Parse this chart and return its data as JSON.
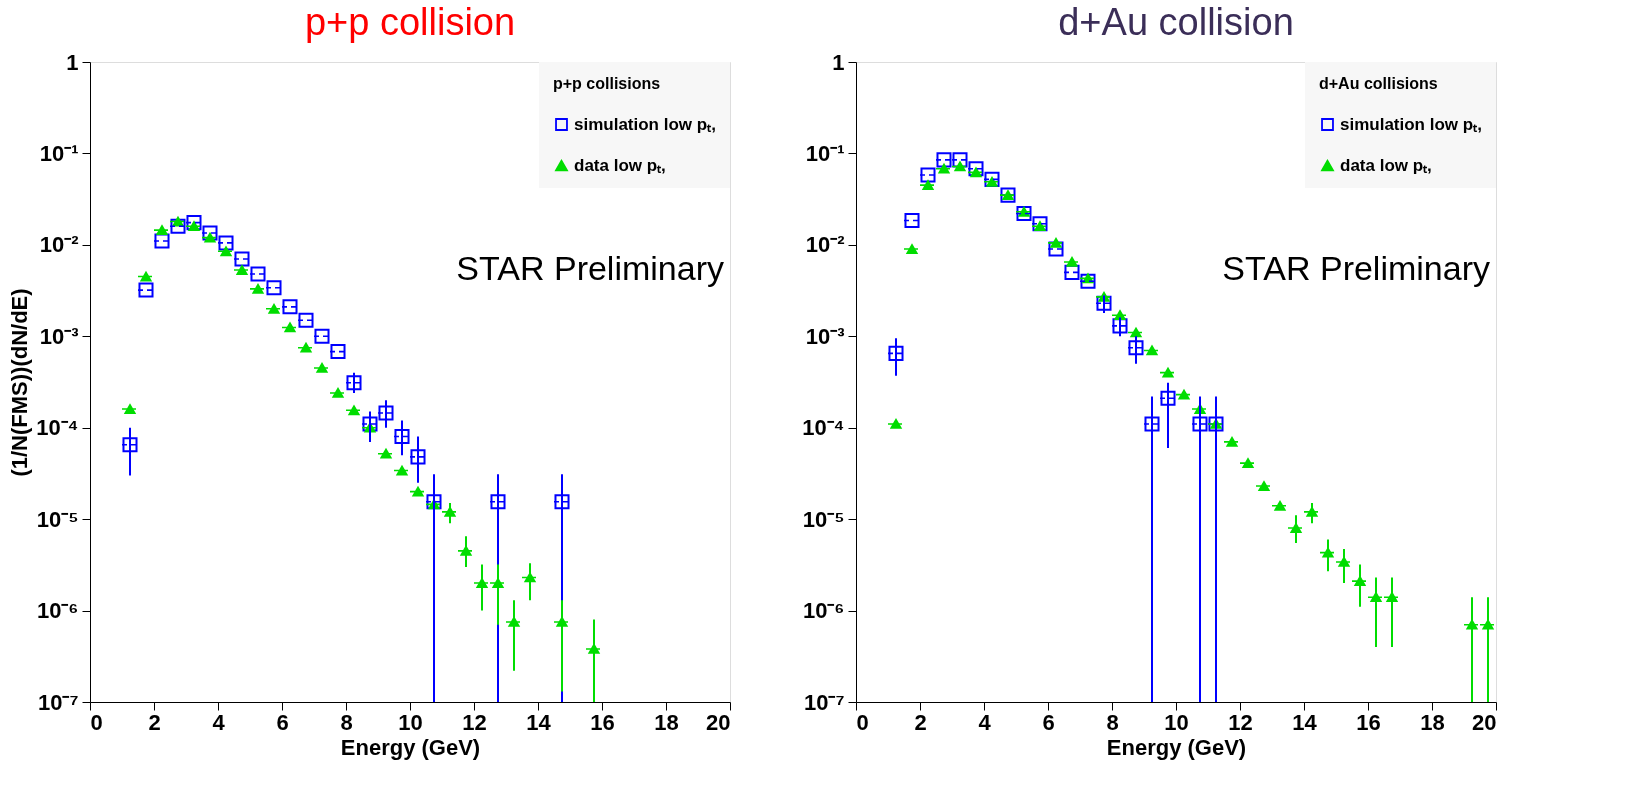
{
  "chart_data": [
    {
      "type": "scatter",
      "title": "p+p collision",
      "xlabel": "Energy (GeV)",
      "ylabel": "(1/N(FMS))(dN/dE)",
      "legend_title": "p+p collisions",
      "legend": "top right",
      "log": "y",
      "xlim": [
        0,
        20
      ],
      "xticks": [
        0,
        2,
        4,
        6,
        8,
        10,
        12,
        14,
        16,
        18,
        20
      ],
      "ylim": [
        1e-07,
        1
      ],
      "yticks": [
        {
          "value": 1e-07,
          "label": "10⁻⁷"
        },
        {
          "value": 1e-06,
          "label": "10⁻⁶"
        },
        {
          "value": 1e-05,
          "label": "10⁻⁵"
        },
        {
          "value": 0.0001,
          "label": "10⁻⁴"
        },
        {
          "value": 0.001,
          "label": "10⁻³"
        },
        {
          "value": 0.01,
          "label": "10⁻²"
        },
        {
          "value": 0.1,
          "label": "10⁻¹"
        },
        1
      ],
      "annotations": [
        "STAR Preliminary"
      ],
      "series": [
        {
          "name": "simulation low pₜ,",
          "color": "#0000ff",
          "marker": "square",
          "x": [
            1.25,
            1.75,
            2.25,
            2.75,
            3.25,
            3.75,
            4.25,
            4.75,
            5.25,
            5.75,
            6.25,
            6.75,
            7.25,
            7.75,
            8.25,
            8.75,
            9.25,
            9.75,
            10.25,
            10.75,
            12.75,
            14.75
          ],
          "values": [
            6.5e-05,
            0.0032,
            0.011,
            0.016,
            0.0175,
            0.0135,
            0.0105,
            0.007,
            0.0048,
            0.0034,
            0.0021,
            0.0015,
            0.001,
            0.00068,
            0.00031,
            0.00011,
            0.000145,
            8e-05,
            4.8e-05,
            1.55e-05,
            1.55e-05,
            1.55e-05
          ],
          "errors": [
            [
              3e-05,
              0.0001
            ],
            null,
            null,
            null,
            null,
            null,
            null,
            null,
            null,
            null,
            null,
            null,
            null,
            null,
            [
              0.00024,
              0.0004
            ],
            [
              7e-05,
              0.00015
            ],
            [
              0.0001,
              0.0002
            ],
            [
              5e-05,
              0.00012
            ],
            [
              2.5e-05,
              8e-05
            ],
            [
              1e-07,
              3.1e-05
            ],
            [
              1e-07,
              3.1e-05
            ],
            [
              1e-07,
              3.1e-05
            ]
          ],
          "xerrors": [
            0.25,
            0.25,
            0.25,
            0.25,
            0.25,
            0.25,
            0.25,
            0.25,
            0.25,
            0.25,
            0.25,
            0.25,
            0.25,
            0.25,
            0.25,
            0.25,
            0.25,
            0.25,
            0.25,
            0.25,
            0.25,
            0.25
          ]
        },
        {
          "name": "data low pₜ,",
          "color": "#00dd00",
          "marker": "triangle",
          "x": [
            1.25,
            1.75,
            2.25,
            2.75,
            3.25,
            3.75,
            4.25,
            4.75,
            5.25,
            5.75,
            6.25,
            6.75,
            7.25,
            7.75,
            8.25,
            8.75,
            9.25,
            9.75,
            10.25,
            10.75,
            11.25,
            11.75,
            12.25,
            12.75,
            13.25,
            13.75,
            14.75,
            15.75
          ],
          "values": [
            0.00016,
            0.0045,
            0.0145,
            0.018,
            0.016,
            0.012,
            0.0085,
            0.0053,
            0.0033,
            0.002,
            0.00125,
            0.00075,
            0.00045,
            0.00024,
            0.000155,
            0.0001,
            5.2e-05,
            3.4e-05,
            2e-05,
            1.45e-05,
            1.2e-05,
            4.5e-06,
            2e-06,
            2e-06,
            7.5e-07,
            2.3e-06,
            7.5e-07,
            3.8e-07
          ],
          "errors": [
            null,
            null,
            null,
            null,
            null,
            null,
            null,
            null,
            null,
            null,
            null,
            null,
            null,
            null,
            null,
            null,
            null,
            null,
            null,
            null,
            [
              9e-06,
              1.5e-05
            ],
            [
              3e-06,
              6.5e-06
            ],
            [
              1e-06,
              3.2e-06
            ],
            [
              7e-07,
              3.2e-06
            ],
            [
              2.2e-07,
              1.3e-06
            ],
            [
              1.3e-06,
              3.3e-06
            ],
            [
              1.3e-07,
              1.3e-06
            ],
            [
              1e-07,
              8e-07
            ]
          ],
          "xerrors": [
            0.25,
            0.25,
            0.25,
            0.25,
            0.25,
            0.25,
            0.25,
            0.25,
            0.25,
            0.25,
            0.25,
            0.25,
            0.25,
            0.25,
            0.25,
            0.25,
            0.25,
            0.25,
            0.25,
            0.25,
            0.25,
            0.25,
            0.25,
            0.25,
            0.25,
            0.25,
            0.25,
            0.25
          ]
        }
      ]
    },
    {
      "type": "scatter",
      "title": "d+Au collision",
      "xlabel": "Energy (GeV)",
      "legend_title": "d+Au collisions",
      "legend": "top right",
      "log": "y",
      "xlim": [
        0,
        20
      ],
      "xticks": [
        0,
        2,
        4,
        6,
        8,
        10,
        12,
        14,
        16,
        18,
        20
      ],
      "ylim": [
        1e-07,
        1
      ],
      "yticks": [
        {
          "value": 1e-07,
          "label": "10⁻⁷"
        },
        {
          "value": 1e-06,
          "label": "10⁻⁶"
        },
        {
          "value": 1e-05,
          "label": "10⁻⁵"
        },
        {
          "value": 0.0001,
          "label": "10⁻⁴"
        },
        {
          "value": 0.001,
          "label": "10⁻³"
        },
        {
          "value": 0.01,
          "label": "10⁻²"
        },
        {
          "value": 0.1,
          "label": "10⁻¹"
        },
        1
      ],
      "annotations": [
        "STAR Preliminary"
      ],
      "series": [
        {
          "name": "simulation low pₜ,",
          "color": "#0000ff",
          "marker": "square",
          "x": [
            1.25,
            1.75,
            2.25,
            2.75,
            3.25,
            3.75,
            4.25,
            4.75,
            5.25,
            5.75,
            6.25,
            6.75,
            7.25,
            7.75,
            8.25,
            8.75,
            9.25,
            9.75,
            10.75,
            11.25
          ],
          "values": [
            0.00065,
            0.0185,
            0.058,
            0.085,
            0.085,
            0.068,
            0.052,
            0.035,
            0.022,
            0.017,
            0.009,
            0.005,
            0.004,
            0.0023,
            0.0013,
            0.00075,
            0.00011,
            0.00021,
            0.00011,
            0.00011
          ],
          "errors": [
            [
              0.00037,
              0.00095
            ],
            null,
            null,
            null,
            null,
            null,
            null,
            null,
            null,
            null,
            null,
            null,
            null,
            [
              0.0018,
              0.0028
            ],
            [
              0.001,
              0.0016
            ],
            [
              0.0005,
              0.001
            ],
            [
              1e-07,
              0.00022
            ],
            [
              6e-05,
              0.00031
            ],
            [
              1e-07,
              0.00022
            ],
            [
              1e-07,
              0.00022
            ]
          ],
          "xerrors": [
            0.25,
            0.25,
            0.25,
            0.25,
            0.25,
            0.25,
            0.25,
            0.25,
            0.25,
            0.25,
            0.25,
            0.25,
            0.25,
            0.25,
            0.25,
            0.25,
            0.25,
            0.25,
            0.25,
            0.25
          ]
        },
        {
          "name": "data low pₜ,",
          "color": "#00dd00",
          "marker": "triangle",
          "x": [
            1.25,
            1.75,
            2.25,
            2.75,
            3.25,
            3.75,
            4.25,
            4.75,
            5.25,
            5.75,
            6.25,
            6.75,
            7.25,
            7.75,
            8.25,
            8.75,
            9.25,
            9.75,
            10.25,
            10.75,
            11.25,
            11.75,
            12.25,
            12.75,
            13.25,
            13.75,
            14.25,
            14.75,
            15.25,
            15.75,
            16.25,
            16.75,
            19.25,
            19.75
          ],
          "values": [
            0.00011,
            0.009,
            0.045,
            0.068,
            0.072,
            0.062,
            0.049,
            0.035,
            0.023,
            0.016,
            0.0105,
            0.0065,
            0.0043,
            0.0027,
            0.0017,
            0.0011,
            0.0007,
            0.0004,
            0.00023,
            0.00016,
            0.00011,
            7e-05,
            4.1e-05,
            2.3e-05,
            1.4e-05,
            8e-06,
            1.2e-05,
            4.3e-06,
            3.4e-06,
            2.1e-06,
            1.4e-06,
            1.4e-06,
            7e-07,
            7e-07
          ],
          "errors": [
            null,
            null,
            null,
            null,
            null,
            null,
            null,
            null,
            null,
            null,
            null,
            null,
            null,
            null,
            null,
            null,
            null,
            null,
            null,
            null,
            null,
            null,
            null,
            null,
            null,
            [
              5.5e-06,
              1.1e-05
            ],
            [
              9e-06,
              1.5e-05
            ],
            [
              2.7e-06,
              6e-06
            ],
            [
              2e-06,
              4.7e-06
            ],
            [
              1.1e-06,
              3.2e-06
            ],
            [
              4e-07,
              2.3e-06
            ],
            [
              4e-07,
              2.3e-06
            ],
            [
              1e-07,
              1.4e-06
            ],
            [
              1e-07,
              1.4e-06
            ]
          ],
          "xerrors": [
            0.25,
            0.25,
            0.25,
            0.25,
            0.25,
            0.25,
            0.25,
            0.25,
            0.25,
            0.25,
            0.25,
            0.25,
            0.25,
            0.25,
            0.25,
            0.25,
            0.25,
            0.25,
            0.25,
            0.25,
            0.25,
            0.25,
            0.25,
            0.25,
            0.25,
            0.25,
            0.25,
            0.25,
            0.25,
            0.25,
            0.25,
            0.25,
            0.25,
            0.25
          ]
        }
      ]
    }
  ]
}
